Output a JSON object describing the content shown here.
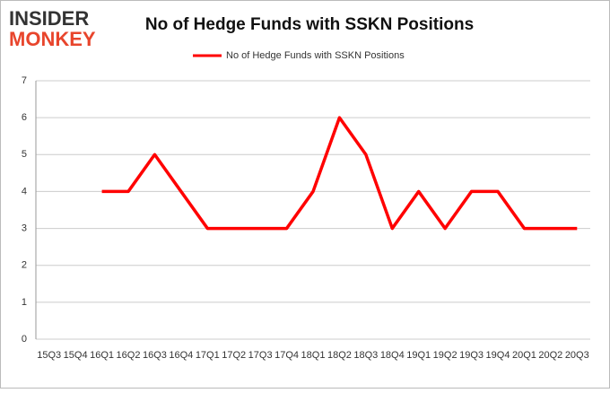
{
  "logo": {
    "top": "INSIDER",
    "bottom": "MONKEY"
  },
  "chart_data": {
    "type": "line",
    "title": "No of Hedge Funds with SSKN Positions",
    "categories": [
      "15Q3",
      "15Q4",
      "16Q1",
      "16Q2",
      "16Q3",
      "16Q4",
      "17Q1",
      "17Q2",
      "17Q3",
      "17Q4",
      "18Q1",
      "18Q2",
      "18Q3",
      "18Q4",
      "19Q1",
      "19Q2",
      "19Q3",
      "19Q4",
      "20Q1",
      "20Q2",
      "20Q3"
    ],
    "series": [
      {
        "name": "No of Hedge Funds with SSKN Positions",
        "color": "#ff0000",
        "values": [
          null,
          null,
          4,
          4,
          5,
          4,
          3,
          3,
          3,
          3,
          4,
          6,
          5,
          3,
          4,
          3,
          4,
          4,
          3,
          3,
          3
        ]
      }
    ],
    "ylim": [
      0,
      7
    ],
    "yticks": [
      0,
      1,
      2,
      3,
      4,
      5,
      6,
      7
    ],
    "grid": true,
    "legend": "top"
  }
}
